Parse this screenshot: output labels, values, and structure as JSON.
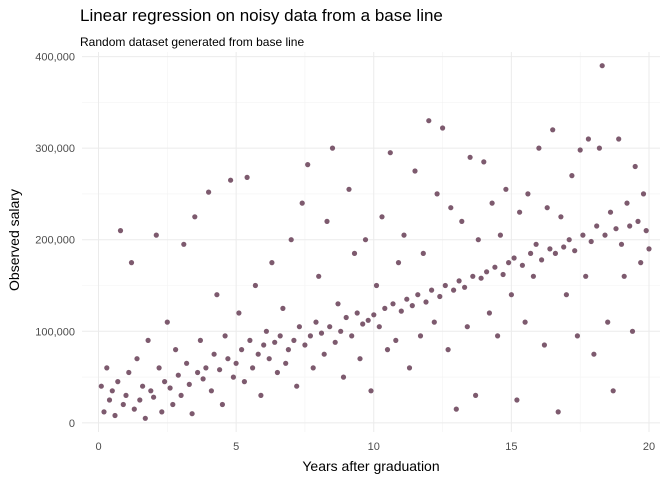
{
  "chart_data": {
    "type": "scatter",
    "title": "Linear regression on noisy data from a base line",
    "subtitle": "Random dataset generated from base line",
    "xlabel": "Years after graduation",
    "ylabel": "Observed salary",
    "xlim": [
      -0.6,
      20.4
    ],
    "ylim": [
      -10000,
      405000
    ],
    "x_ticks": [
      0,
      5,
      10,
      15,
      20
    ],
    "x_tick_labels": [
      "0",
      "5",
      "10",
      "15",
      "20"
    ],
    "y_ticks": [
      0,
      100000,
      200000,
      300000,
      400000
    ],
    "y_tick_labels": [
      "0",
      "100,000",
      "200,000",
      "300,000",
      "400,000"
    ],
    "grid": true,
    "point_color": "#7d5a6e",
    "points": [
      [
        0.1,
        40000
      ],
      [
        0.2,
        12000
      ],
      [
        0.3,
        60000
      ],
      [
        0.4,
        25000
      ],
      [
        0.5,
        35000
      ],
      [
        0.6,
        8000
      ],
      [
        0.7,
        45000
      ],
      [
        0.8,
        210000
      ],
      [
        0.9,
        20000
      ],
      [
        1.0,
        30000
      ],
      [
        1.1,
        55000
      ],
      [
        1.2,
        175000
      ],
      [
        1.3,
        15000
      ],
      [
        1.4,
        70000
      ],
      [
        1.5,
        25000
      ],
      [
        1.6,
        40000
      ],
      [
        1.7,
        5000
      ],
      [
        1.8,
        90000
      ],
      [
        1.9,
        35000
      ],
      [
        2.0,
        28000
      ],
      [
        2.1,
        205000
      ],
      [
        2.2,
        60000
      ],
      [
        2.3,
        12000
      ],
      [
        2.4,
        45000
      ],
      [
        2.5,
        110000
      ],
      [
        2.6,
        38000
      ],
      [
        2.7,
        20000
      ],
      [
        2.8,
        80000
      ],
      [
        2.9,
        52000
      ],
      [
        3.0,
        30000
      ],
      [
        3.1,
        195000
      ],
      [
        3.2,
        65000
      ],
      [
        3.3,
        42000
      ],
      [
        3.4,
        10000
      ],
      [
        3.5,
        225000
      ],
      [
        3.6,
        55000
      ],
      [
        3.7,
        90000
      ],
      [
        3.8,
        48000
      ],
      [
        3.9,
        60000
      ],
      [
        4.0,
        252000
      ],
      [
        4.1,
        35000
      ],
      [
        4.2,
        75000
      ],
      [
        4.3,
        140000
      ],
      [
        4.4,
        58000
      ],
      [
        4.5,
        20000
      ],
      [
        4.6,
        95000
      ],
      [
        4.7,
        70000
      ],
      [
        4.8,
        265000
      ],
      [
        4.9,
        50000
      ],
      [
        5.0,
        65000
      ],
      [
        5.1,
        120000
      ],
      [
        5.2,
        80000
      ],
      [
        5.3,
        45000
      ],
      [
        5.4,
        268000
      ],
      [
        5.5,
        90000
      ],
      [
        5.6,
        60000
      ],
      [
        5.7,
        150000
      ],
      [
        5.8,
        75000
      ],
      [
        5.9,
        30000
      ],
      [
        6.0,
        85000
      ],
      [
        6.1,
        100000
      ],
      [
        6.2,
        70000
      ],
      [
        6.3,
        175000
      ],
      [
        6.4,
        88000
      ],
      [
        6.5,
        55000
      ],
      [
        6.6,
        95000
      ],
      [
        6.7,
        125000
      ],
      [
        6.8,
        65000
      ],
      [
        6.9,
        80000
      ],
      [
        7.0,
        200000
      ],
      [
        7.1,
        90000
      ],
      [
        7.2,
        40000
      ],
      [
        7.3,
        105000
      ],
      [
        7.4,
        240000
      ],
      [
        7.5,
        85000
      ],
      [
        7.6,
        282000
      ],
      [
        7.7,
        95000
      ],
      [
        7.8,
        60000
      ],
      [
        7.9,
        110000
      ],
      [
        8.0,
        160000
      ],
      [
        8.1,
        98000
      ],
      [
        8.2,
        75000
      ],
      [
        8.3,
        220000
      ],
      [
        8.4,
        105000
      ],
      [
        8.5,
        300000
      ],
      [
        8.6,
        88000
      ],
      [
        8.7,
        130000
      ],
      [
        8.8,
        100000
      ],
      [
        8.9,
        50000
      ],
      [
        9.0,
        115000
      ],
      [
        9.1,
        255000
      ],
      [
        9.2,
        95000
      ],
      [
        9.3,
        185000
      ],
      [
        9.4,
        120000
      ],
      [
        9.5,
        70000
      ],
      [
        9.6,
        108000
      ],
      [
        9.7,
        200000
      ],
      [
        9.8,
        112000
      ],
      [
        9.9,
        35000
      ],
      [
        10.0,
        118000
      ],
      [
        10.1,
        150000
      ],
      [
        10.2,
        105000
      ],
      [
        10.3,
        225000
      ],
      [
        10.4,
        125000
      ],
      [
        10.5,
        80000
      ],
      [
        10.6,
        295000
      ],
      [
        10.7,
        130000
      ],
      [
        10.8,
        90000
      ],
      [
        10.9,
        175000
      ],
      [
        11.0,
        122000
      ],
      [
        11.1,
        205000
      ],
      [
        11.2,
        135000
      ],
      [
        11.3,
        60000
      ],
      [
        11.4,
        128000
      ],
      [
        11.5,
        275000
      ],
      [
        11.6,
        140000
      ],
      [
        11.7,
        95000
      ],
      [
        11.8,
        185000
      ],
      [
        11.9,
        132000
      ],
      [
        12.0,
        330000
      ],
      [
        12.1,
        145000
      ],
      [
        12.2,
        110000
      ],
      [
        12.3,
        250000
      ],
      [
        12.4,
        138000
      ],
      [
        12.5,
        322000
      ],
      [
        12.6,
        150000
      ],
      [
        12.7,
        80000
      ],
      [
        12.8,
        235000
      ],
      [
        12.9,
        145000
      ],
      [
        13.0,
        15000
      ],
      [
        13.1,
        155000
      ],
      [
        13.2,
        220000
      ],
      [
        13.3,
        148000
      ],
      [
        13.4,
        105000
      ],
      [
        13.5,
        290000
      ],
      [
        13.6,
        160000
      ],
      [
        13.7,
        30000
      ],
      [
        13.8,
        200000
      ],
      [
        13.9,
        158000
      ],
      [
        14.0,
        285000
      ],
      [
        14.1,
        165000
      ],
      [
        14.2,
        120000
      ],
      [
        14.3,
        240000
      ],
      [
        14.4,
        170000
      ],
      [
        14.5,
        95000
      ],
      [
        14.6,
        205000
      ],
      [
        14.7,
        162000
      ],
      [
        14.8,
        255000
      ],
      [
        14.9,
        175000
      ],
      [
        15.0,
        140000
      ],
      [
        15.1,
        180000
      ],
      [
        15.2,
        25000
      ],
      [
        15.3,
        230000
      ],
      [
        15.4,
        172000
      ],
      [
        15.5,
        110000
      ],
      [
        15.6,
        250000
      ],
      [
        15.7,
        185000
      ],
      [
        15.8,
        160000
      ],
      [
        15.9,
        195000
      ],
      [
        16.0,
        300000
      ],
      [
        16.1,
        178000
      ],
      [
        16.2,
        85000
      ],
      [
        16.3,
        235000
      ],
      [
        16.4,
        190000
      ],
      [
        16.5,
        320000
      ],
      [
        16.6,
        185000
      ],
      [
        16.7,
        12000
      ],
      [
        16.8,
        225000
      ],
      [
        16.9,
        192000
      ],
      [
        17.0,
        140000
      ],
      [
        17.1,
        200000
      ],
      [
        17.2,
        270000
      ],
      [
        17.3,
        188000
      ],
      [
        17.4,
        95000
      ],
      [
        17.5,
        298000
      ],
      [
        17.6,
        205000
      ],
      [
        17.7,
        160000
      ],
      [
        17.8,
        310000
      ],
      [
        17.9,
        198000
      ],
      [
        18.0,
        75000
      ],
      [
        18.1,
        215000
      ],
      [
        18.2,
        300000
      ],
      [
        18.3,
        390000
      ],
      [
        18.4,
        205000
      ],
      [
        18.5,
        110000
      ],
      [
        18.6,
        230000
      ],
      [
        18.7,
        35000
      ],
      [
        18.8,
        212000
      ],
      [
        18.9,
        310000
      ],
      [
        19.0,
        195000
      ],
      [
        19.1,
        160000
      ],
      [
        19.2,
        240000
      ],
      [
        19.3,
        215000
      ],
      [
        19.4,
        100000
      ],
      [
        19.5,
        280000
      ],
      [
        19.6,
        220000
      ],
      [
        19.7,
        175000
      ],
      [
        19.8,
        250000
      ],
      [
        19.9,
        210000
      ],
      [
        20.0,
        190000
      ]
    ]
  }
}
